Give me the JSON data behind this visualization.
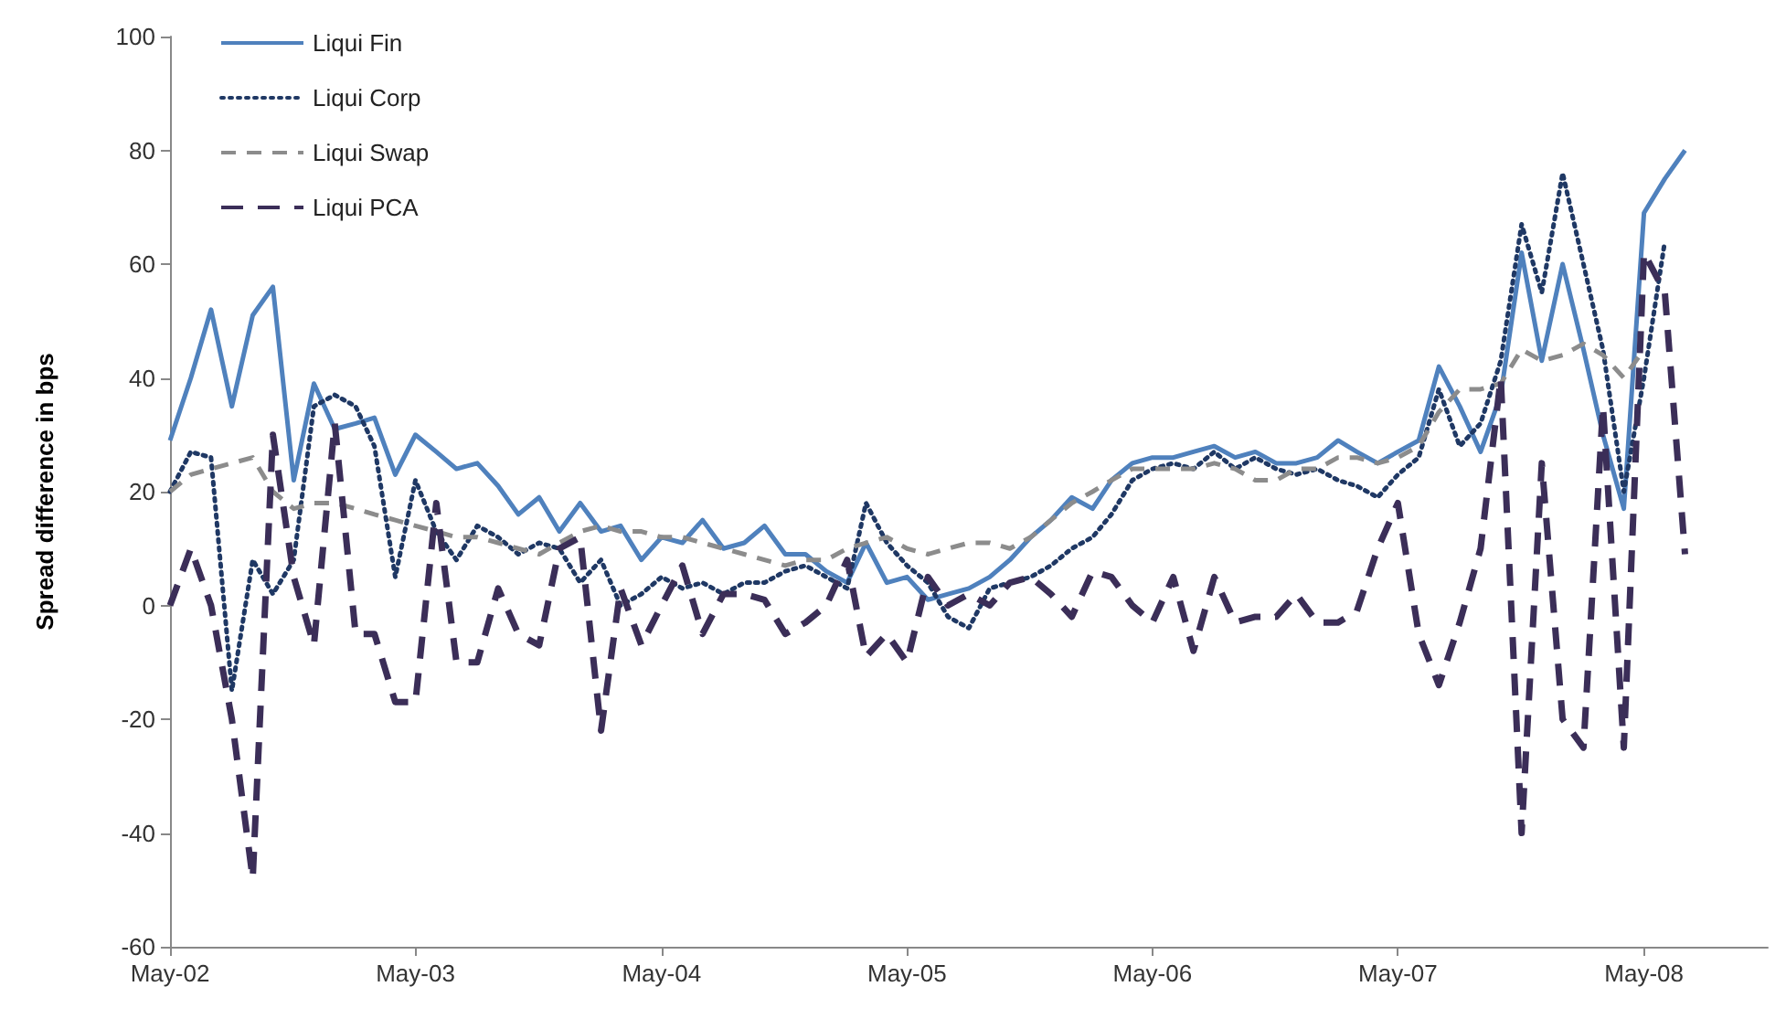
{
  "chart_data": {
    "type": "line",
    "ylabel": "Spread difference in bps",
    "marker": "none",
    "grid": false,
    "legend": "top left",
    "x": [
      "2002-05",
      "2002-06",
      "2002-07",
      "2002-08",
      "2002-09",
      "2002-10",
      "2002-11",
      "2002-12",
      "2003-01",
      "2003-02",
      "2003-03",
      "2003-04",
      "2003-05",
      "2003-06",
      "2003-07",
      "2003-08",
      "2003-09",
      "2003-10",
      "2003-11",
      "2003-12",
      "2004-01",
      "2004-02",
      "2004-03",
      "2004-04",
      "2004-05",
      "2004-06",
      "2004-07",
      "2004-08",
      "2004-09",
      "2004-10",
      "2004-11",
      "2004-12",
      "2005-01",
      "2005-02",
      "2005-03",
      "2005-04",
      "2005-05",
      "2005-06",
      "2005-07",
      "2005-08",
      "2005-09",
      "2005-10",
      "2005-11",
      "2005-12",
      "2006-01",
      "2006-02",
      "2006-03",
      "2006-04",
      "2006-05",
      "2006-06",
      "2006-07",
      "2006-08",
      "2006-09",
      "2006-10",
      "2006-11",
      "2006-12",
      "2007-01",
      "2007-02",
      "2007-03",
      "2007-04",
      "2007-05",
      "2007-06",
      "2007-07",
      "2007-08",
      "2007-09",
      "2007-10",
      "2007-11",
      "2007-12",
      "2008-01",
      "2008-02",
      "2008-03",
      "2008-04",
      "2008-05",
      "2008-06",
      "2008-07"
    ],
    "xlim": [
      "2002-05",
      "2008-11"
    ],
    "xticks": [
      {
        "value": "2002-05",
        "label": "May-02"
      },
      {
        "value": "2003-05",
        "label": "May-03"
      },
      {
        "value": "2004-05",
        "label": "May-04"
      },
      {
        "value": "2005-05",
        "label": "May-05"
      },
      {
        "value": "2006-05",
        "label": "May-06"
      },
      {
        "value": "2007-05",
        "label": "May-07"
      },
      {
        "value": "2008-05",
        "label": "May-08"
      }
    ],
    "ylim": [
      -60,
      100
    ],
    "yticks": [
      -60,
      -40,
      -20,
      0,
      20,
      40,
      60,
      80,
      100
    ],
    "series": [
      {
        "name": "Liqui Fin",
        "color": "#4f81bd",
        "line_style": "solid",
        "values": [
          29,
          40,
          52,
          35,
          51,
          56,
          22,
          39,
          31,
          32,
          33,
          23,
          30,
          27,
          24,
          25,
          21,
          16,
          19,
          13,
          18,
          13,
          14,
          8,
          12,
          11,
          15,
          10,
          11,
          14,
          9,
          9,
          6,
          4,
          11,
          4,
          5,
          1,
          2,
          3,
          5,
          8,
          12,
          15,
          19,
          17,
          22,
          25,
          26,
          26,
          27,
          28,
          26,
          27,
          25,
          25,
          26,
          29,
          27,
          25,
          27,
          29,
          42,
          35,
          27,
          37,
          62,
          43,
          60,
          45,
          30,
          17,
          69,
          75,
          80
        ]
      },
      {
        "name": "Liqui Corp",
        "color": "#1f3864",
        "line_style": "dotted",
        "values": [
          20,
          27,
          26,
          -15,
          8,
          2,
          8,
          35,
          37,
          35,
          28,
          5,
          22,
          13,
          8,
          14,
          12,
          9,
          11,
          10,
          4,
          8,
          0,
          2,
          5,
          3,
          4,
          2,
          4,
          4,
          6,
          7,
          5,
          3,
          18,
          11,
          7,
          4,
          -2,
          -4,
          3,
          4,
          5,
          7,
          10,
          12,
          16,
          22,
          24,
          25,
          24,
          27,
          24,
          26,
          24,
          23,
          24,
          22,
          21,
          19,
          23,
          26,
          38,
          28,
          32,
          43,
          67,
          55,
          76,
          60,
          45,
          20,
          40,
          64,
          null
        ]
      },
      {
        "name": "Liqui Swap",
        "color": "#8c8c8c",
        "line_style": "dashed",
        "values": [
          20,
          23,
          24,
          25,
          26,
          20,
          17,
          18,
          18,
          17,
          16,
          15,
          14,
          13,
          12,
          12,
          11,
          10,
          9,
          11,
          13,
          14,
          13,
          13,
          12,
          12,
          11,
          10,
          9,
          8,
          7,
          8,
          8,
          10,
          11,
          12,
          10,
          9,
          10,
          11,
          11,
          10,
          12,
          15,
          18,
          20,
          22,
          24,
          24,
          24,
          24,
          25,
          24,
          22,
          22,
          24,
          24,
          26,
          26,
          25,
          26,
          28,
          34,
          38,
          38,
          39,
          45,
          43,
          44,
          46,
          44,
          40,
          45,
          null,
          null
        ]
      },
      {
        "name": "Liqui PCA",
        "color": "#3b2e58",
        "line_style": "dashed",
        "values": [
          0,
          10,
          0,
          -20,
          -48,
          30,
          5,
          -7,
          32,
          -5,
          -5,
          -17,
          -17,
          18,
          -10,
          -10,
          3,
          -5,
          -7,
          10,
          12,
          -22,
          3,
          -7,
          0,
          7,
          -5,
          2,
          2,
          1,
          -5,
          -3,
          0,
          8,
          -9,
          -5,
          -10,
          5,
          0,
          2,
          0,
          4,
          5,
          2,
          -2,
          6,
          5,
          0,
          -3,
          5,
          -8,
          5,
          -3,
          -2,
          -2,
          2,
          -3,
          -3,
          -1,
          10,
          18,
          -5,
          -14,
          -3,
          10,
          40,
          -40,
          25,
          -20,
          -25,
          35,
          -25,
          62,
          55,
          9
        ]
      }
    ]
  }
}
